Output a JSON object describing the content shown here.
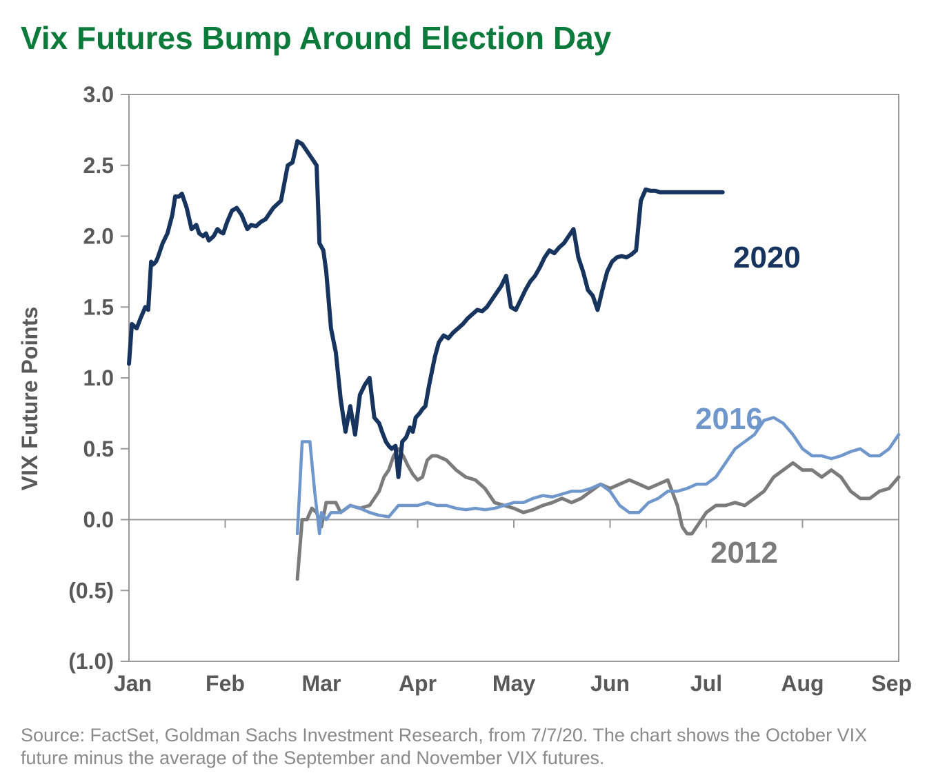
{
  "title": "Vix Futures Bump Around Election Day",
  "source": "Source: FactSet, Goldman Sachs Investment Research, from 7/7/20. The chart shows the October VIX future minus the average of the September and November VIX futures.",
  "chart_data": {
    "type": "line",
    "title": "Vix Futures Bump Around Election Day",
    "xlabel": "",
    "ylabel": "VIX Future Points",
    "ylim": [
      -1.0,
      3.0
    ],
    "yticks": [
      3.0,
      2.5,
      2.0,
      1.5,
      1.0,
      0.5,
      0.0,
      -0.5,
      -1.0
    ],
    "yticklabels": [
      "3.0",
      "2.5",
      "2.0",
      "1.5",
      "1.0",
      "0.5",
      "0.0",
      "(0.5)",
      "(1.0)"
    ],
    "xlim": [
      0,
      8
    ],
    "xticks": [
      0,
      1,
      2,
      3,
      4,
      5,
      6,
      7,
      8
    ],
    "xticklabels": [
      "Jan",
      "Feb",
      "Mar",
      "Apr",
      "May",
      "Jun",
      "Jul",
      "Aug",
      "Sep"
    ],
    "grid": false,
    "series": [
      {
        "name": "2020",
        "color": "#17345f",
        "x": [
          0,
          0.03,
          0.08,
          0.12,
          0.17,
          0.2,
          0.23,
          0.25,
          0.28,
          0.3,
          0.35,
          0.4,
          0.45,
          0.48,
          0.52,
          0.55,
          0.6,
          0.65,
          0.7,
          0.73,
          0.77,
          0.8,
          0.83,
          0.88,
          0.92,
          0.95,
          0.98,
          1.02,
          1.07,
          1.12,
          1.17,
          1.2,
          1.23,
          1.27,
          1.32,
          1.37,
          1.42,
          1.5,
          1.58,
          1.65,
          1.7,
          1.75,
          1.8,
          1.85,
          1.9,
          1.95,
          1.98,
          2.02,
          2.05,
          2.1,
          2.15,
          2.2,
          2.25,
          2.3,
          2.35,
          2.4,
          2.45,
          2.5,
          2.55,
          2.6,
          2.63,
          2.67,
          2.7,
          2.73,
          2.77,
          2.8,
          2.84,
          2.88,
          2.92,
          2.95,
          2.98,
          3.02,
          3.05,
          3.08,
          3.12,
          3.15,
          3.18,
          3.22,
          3.27,
          3.32,
          3.37,
          3.42,
          3.47,
          3.52,
          3.57,
          3.62,
          3.67,
          3.72,
          3.77,
          3.82,
          3.87,
          3.92,
          3.97,
          4.02,
          4.07,
          4.12,
          4.17,
          4.22,
          4.27,
          4.32,
          4.37,
          4.42,
          4.47,
          4.52,
          4.57,
          4.62,
          4.67,
          4.72,
          4.77,
          4.82,
          4.87,
          4.92,
          4.97,
          5.02,
          5.07,
          5.12,
          5.17,
          5.22,
          5.27,
          5.32,
          5.37,
          5.42,
          5.47,
          5.52,
          5.57,
          5.62,
          5.67,
          5.72,
          5.77,
          5.82,
          5.87,
          5.92,
          5.97,
          6.02,
          6.07,
          6.12,
          6.17
        ],
        "y": [
          1.1,
          1.38,
          1.35,
          1.42,
          1.5,
          1.48,
          1.82,
          1.8,
          1.82,
          1.85,
          1.95,
          2.02,
          2.15,
          2.28,
          2.28,
          2.3,
          2.2,
          2.05,
          2.08,
          2.02,
          2.0,
          2.02,
          1.97,
          2.0,
          2.05,
          2.03,
          2.02,
          2.1,
          2.18,
          2.2,
          2.15,
          2.1,
          2.05,
          2.08,
          2.07,
          2.1,
          2.12,
          2.2,
          2.25,
          2.5,
          2.52,
          2.67,
          2.65,
          2.6,
          2.55,
          2.5,
          1.95,
          1.9,
          1.75,
          1.35,
          1.18,
          0.85,
          0.62,
          0.8,
          0.6,
          0.88,
          0.95,
          1.0,
          0.72,
          0.68,
          0.62,
          0.55,
          0.52,
          0.5,
          0.52,
          0.3,
          0.55,
          0.58,
          0.65,
          0.62,
          0.72,
          0.75,
          0.78,
          0.8,
          0.95,
          1.05,
          1.15,
          1.25,
          1.3,
          1.28,
          1.32,
          1.35,
          1.38,
          1.42,
          1.45,
          1.48,
          1.47,
          1.5,
          1.55,
          1.6,
          1.65,
          1.72,
          1.5,
          1.48,
          1.55,
          1.62,
          1.68,
          1.72,
          1.78,
          1.85,
          1.9,
          1.88,
          1.92,
          1.95,
          2.0,
          2.05,
          1.85,
          1.75,
          1.62,
          1.58,
          1.48,
          1.62,
          1.75,
          1.82,
          1.85,
          1.86,
          1.85,
          1.87,
          1.9,
          2.25,
          2.33,
          2.32,
          2.32,
          2.31,
          2.31,
          2.31,
          2.31,
          2.31,
          2.31,
          2.31,
          2.31,
          2.31,
          2.31,
          2.31,
          2.31,
          2.31,
          2.31
        ]
      },
      {
        "name": "2016",
        "color": "#6f97cc",
        "x": [
          1.75,
          1.8,
          1.85,
          1.88,
          1.93,
          1.98,
          2.0,
          2.05,
          2.1,
          2.15,
          2.2,
          2.3,
          2.4,
          2.5,
          2.6,
          2.7,
          2.8,
          2.9,
          3.0,
          3.1,
          3.2,
          3.3,
          3.4,
          3.5,
          3.6,
          3.7,
          3.8,
          3.9,
          4.0,
          4.1,
          4.2,
          4.3,
          4.4,
          4.5,
          4.6,
          4.7,
          4.8,
          4.9,
          5.0,
          5.1,
          5.2,
          5.3,
          5.4,
          5.5,
          5.6,
          5.7,
          5.8,
          5.9,
          6.0,
          6.1,
          6.2,
          6.3,
          6.4,
          6.5,
          6.6,
          6.7,
          6.8,
          6.9,
          7.0,
          7.1,
          7.2,
          7.3,
          7.4,
          7.5,
          7.6,
          7.7,
          7.8,
          7.9,
          8.0
        ],
        "y": [
          -0.1,
          0.55,
          0.55,
          0.55,
          0.2,
          -0.1,
          0.05,
          0.0,
          0.05,
          0.05,
          0.05,
          0.1,
          0.08,
          0.05,
          0.03,
          0.02,
          0.1,
          0.1,
          0.1,
          0.12,
          0.1,
          0.1,
          0.08,
          0.07,
          0.08,
          0.07,
          0.08,
          0.1,
          0.12,
          0.12,
          0.15,
          0.17,
          0.16,
          0.18,
          0.2,
          0.2,
          0.22,
          0.25,
          0.2,
          0.1,
          0.05,
          0.05,
          0.12,
          0.15,
          0.2,
          0.2,
          0.22,
          0.25,
          0.25,
          0.3,
          0.4,
          0.5,
          0.55,
          0.6,
          0.7,
          0.72,
          0.68,
          0.6,
          0.5,
          0.45,
          0.45,
          0.43,
          0.45,
          0.48,
          0.5,
          0.45,
          0.45,
          0.5,
          0.6
        ]
      },
      {
        "name": "2012",
        "color": "#7b7b7b",
        "x": [
          1.75,
          1.8,
          1.85,
          1.9,
          1.95,
          2.0,
          2.05,
          2.1,
          2.15,
          2.2,
          2.3,
          2.4,
          2.5,
          2.6,
          2.65,
          2.7,
          2.75,
          2.8,
          2.85,
          2.9,
          2.95,
          3.0,
          3.05,
          3.1,
          3.15,
          3.2,
          3.3,
          3.4,
          3.5,
          3.6,
          3.7,
          3.8,
          3.9,
          4.0,
          4.1,
          4.2,
          4.3,
          4.4,
          4.5,
          4.6,
          4.7,
          4.8,
          4.9,
          5.0,
          5.1,
          5.2,
          5.3,
          5.4,
          5.5,
          5.6,
          5.7,
          5.75,
          5.8,
          5.85,
          5.9,
          6.0,
          6.1,
          6.2,
          6.3,
          6.4,
          6.5,
          6.6,
          6.7,
          6.8,
          6.9,
          7.0,
          7.1,
          7.2,
          7.3,
          7.4,
          7.5,
          7.6,
          7.7,
          7.8,
          7.9,
          8.0
        ],
        "y": [
          -0.42,
          0.0,
          0.0,
          0.08,
          0.05,
          -0.05,
          0.12,
          0.12,
          0.12,
          0.05,
          0.1,
          0.08,
          0.1,
          0.2,
          0.3,
          0.35,
          0.45,
          0.5,
          0.45,
          0.38,
          0.32,
          0.28,
          0.3,
          0.42,
          0.45,
          0.45,
          0.42,
          0.35,
          0.3,
          0.28,
          0.22,
          0.12,
          0.1,
          0.08,
          0.05,
          0.07,
          0.1,
          0.12,
          0.15,
          0.12,
          0.15,
          0.2,
          0.25,
          0.22,
          0.25,
          0.28,
          0.25,
          0.22,
          0.25,
          0.28,
          0.1,
          -0.05,
          -0.1,
          -0.1,
          -0.05,
          0.05,
          0.1,
          0.1,
          0.12,
          0.1,
          0.15,
          0.2,
          0.3,
          0.35,
          0.4,
          0.35,
          0.35,
          0.3,
          0.35,
          0.3,
          0.2,
          0.15,
          0.15,
          0.2,
          0.22,
          0.3
        ]
      }
    ]
  }
}
